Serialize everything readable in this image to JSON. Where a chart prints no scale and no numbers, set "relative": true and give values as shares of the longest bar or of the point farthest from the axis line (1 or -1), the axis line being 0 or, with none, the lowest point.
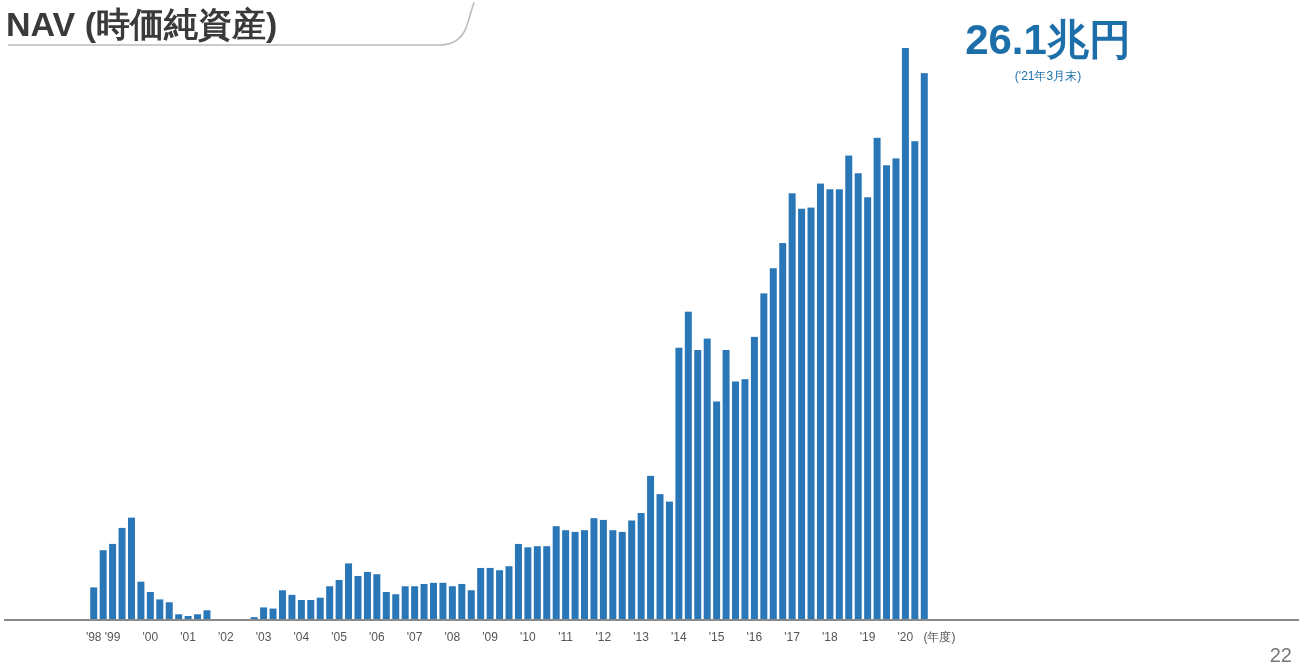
{
  "chart_data": {
    "type": "bar",
    "title": "NAV (時価純資産)",
    "xlabel": "(年度)",
    "relative": true,
    "color": "#2a77b8",
    "categories": [
      "'98",
      null,
      "'99",
      null,
      null,
      null,
      "'00",
      null,
      null,
      null,
      "'01",
      null,
      null,
      null,
      "'02",
      null,
      null,
      null,
      "'03",
      null,
      null,
      null,
      "'04",
      null,
      null,
      null,
      "'05",
      null,
      null,
      null,
      "'06",
      null,
      null,
      null,
      "'07",
      null,
      null,
      null,
      "'08",
      null,
      null,
      null,
      "'09",
      null,
      null,
      null,
      "'10",
      null,
      null,
      null,
      "'11",
      null,
      null,
      null,
      "'12",
      null,
      null,
      null,
      "'13",
      null,
      null,
      null,
      "'14",
      null,
      null,
      null,
      "'15",
      null,
      null,
      null,
      "'16",
      null,
      null,
      null,
      "'17",
      null,
      null,
      null,
      "'18",
      null,
      null,
      null,
      "'19",
      null,
      null,
      null,
      "'20",
      null,
      null
    ],
    "values": [
      0.057,
      0.122,
      0.133,
      0.161,
      0.179,
      0.067,
      0.049,
      0.036,
      0.031,
      0.01,
      0.007,
      0.01,
      0.017,
      null,
      null,
      null,
      null,
      0.005,
      0.022,
      0.02,
      0.052,
      0.044,
      0.035,
      0.035,
      0.039,
      0.059,
      0.07,
      0.099,
      0.077,
      0.084,
      0.08,
      0.049,
      0.045,
      0.059,
      0.059,
      0.063,
      0.065,
      0.065,
      0.059,
      0.063,
      0.052,
      0.091,
      0.091,
      0.087,
      0.094,
      0.133,
      0.127,
      0.129,
      0.129,
      0.164,
      0.157,
      0.154,
      0.157,
      0.178,
      0.175,
      0.157,
      0.154,
      0.174,
      0.187,
      0.252,
      0.22,
      0.207,
      0.476,
      0.539,
      0.472,
      0.492,
      0.382,
      0.472,
      0.417,
      0.421,
      0.495,
      0.571,
      0.615,
      0.659,
      0.746,
      0.719,
      0.721,
      0.763,
      0.753,
      0.753,
      0.812,
      0.781,
      0.739,
      0.843,
      0.795,
      0.807,
      1,
      0.837,
      0.956
    ],
    "annotations": [
      "26.1兆円",
      "('21年3月末)",
      "22"
    ]
  }
}
